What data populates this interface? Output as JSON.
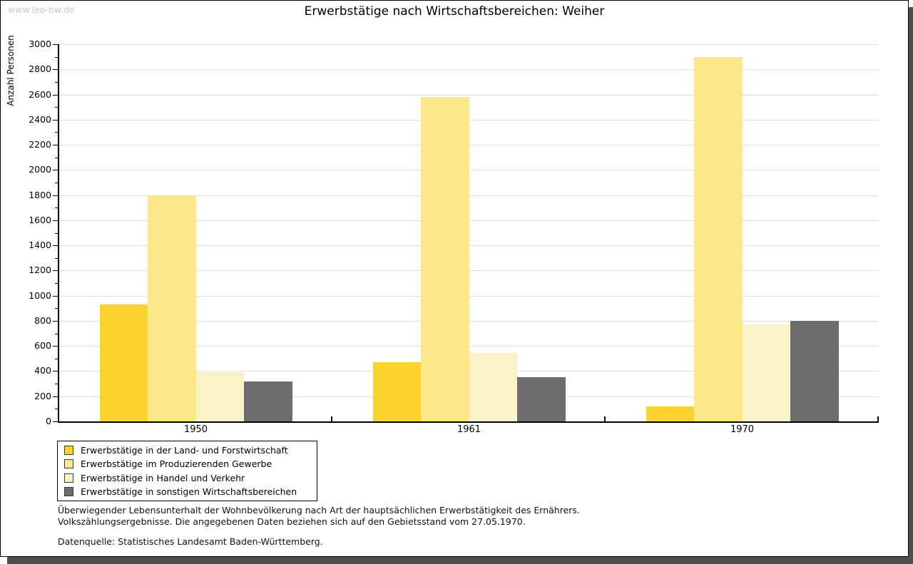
{
  "watermark": "www.leo-bw.de",
  "title": "Erwerbstätige nach Wirtschaftsbereichen: Weiher",
  "chart_data": {
    "type": "bar",
    "categories": [
      "1950",
      "1961",
      "1970"
    ],
    "series": [
      {
        "name": "Erwerbstätige in der Land- und Forstwirtschaft",
        "color": "#fbd32c",
        "values": [
          930,
          470,
          120
        ]
      },
      {
        "name": "Erwerbstätige im Produzierenden Gewerbe",
        "color": "#fce88a",
        "values": [
          1800,
          2580,
          2900
        ]
      },
      {
        "name": "Erwerbstätige in Handel und Verkehr",
        "color": "#fbf2c8",
        "values": [
          390,
          545,
          770
        ]
      },
      {
        "name": "Erwerbstätige in sonstigen Wirtschaftsbereichen",
        "color": "#6d6d6d",
        "values": [
          320,
          350,
          800
        ]
      }
    ],
    "xlabel": "",
    "ylabel": "Anzahl Personen",
    "ylim": [
      0,
      3000
    ],
    "ytick_major": 200,
    "ytick_minor": 100,
    "grid": true,
    "legend_position": "bottom-left"
  },
  "footnotes": {
    "line1": "Überwiegender Lebensunterhalt der Wohnbevölkerung nach Art der hauptsächlichen Erwerbstätigkeit des Ernährers.",
    "line2": "Volkszählungsergebnisse. Die angegebenen Daten beziehen sich auf den Gebietsstand vom 27.05.1970.",
    "source": "Datenquelle: Statistisches Landesamt Baden-Württemberg."
  },
  "colors": {
    "gridline": "#dedede",
    "axis": "#000000",
    "watermark": "#c9c9c9",
    "frame_shadow": "#4f4f4f"
  }
}
